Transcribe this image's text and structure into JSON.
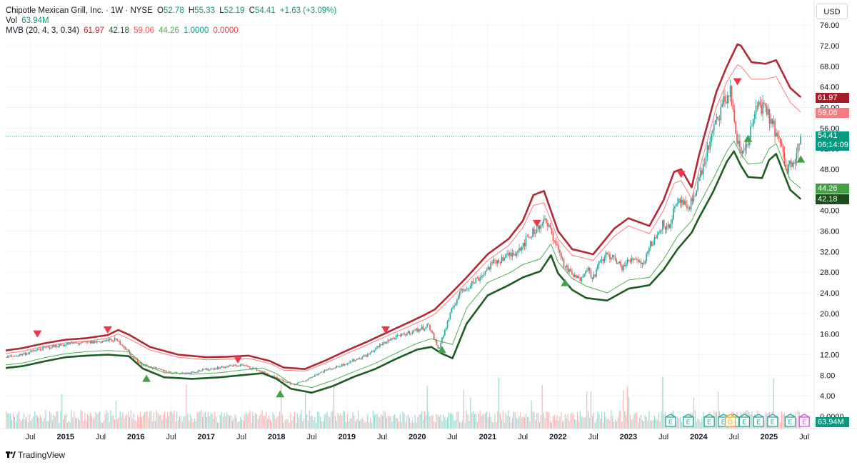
{
  "legend": {
    "title": "Chipotle Mexican Grill, Inc. · 1W · NYSE",
    "open_label": "O",
    "open": "52.78",
    "high_label": "H",
    "high": "55.33",
    "low_label": "L",
    "low": "52.19",
    "close_label": "C",
    "close": "54.41",
    "change": "+1.63 (+3.09%)",
    "vol_label": "Vol",
    "vol_value": "63.94M",
    "mvb_label": "MVB (20, 4, 3, 0.34)",
    "mvb_values": [
      "61.97",
      "42.18",
      "59.06",
      "44.26",
      "1.0000",
      "0.0000"
    ]
  },
  "currency": "USD",
  "price_tags": {
    "upper_outer": "61.97",
    "upper_inner": "59.06",
    "last_price": "54.41",
    "countdown": "06:14:09",
    "lower_inner": "44.26",
    "lower_outer": "42.18",
    "volume": "63.94M"
  },
  "watermark": "TradingView",
  "colors": {
    "up": "#26a69a",
    "down": "#ef5350",
    "upper_band": "#b22833",
    "upper_inner": "#f77c80",
    "lower_band": "#1b5e20",
    "lower_inner": "#4caf50",
    "earnings": "#26a69a",
    "dividend": "#f7a600",
    "split": "#e040fb"
  },
  "chart_data": {
    "type": "line",
    "title": "Chipotle Mexican Grill, Inc. · 1W · NYSE",
    "y_axis_labels": [
      "0.0000",
      "4.00",
      "8.00",
      "12.00",
      "16.00",
      "20.00",
      "24.00",
      "28.00",
      "32.00",
      "36.00",
      "40.00",
      "44.00",
      "48.00",
      "52.00",
      "56.00",
      "60.00",
      "64.00",
      "68.00",
      "72.00",
      "76.00"
    ],
    "x_axis_labels": [
      "Jul",
      "2015",
      "Jul",
      "2016",
      "Jul",
      "2017",
      "Jul",
      "2018",
      "Jul",
      "2019",
      "Jul",
      "2020",
      "Jul",
      "2021",
      "Jul",
      "2022",
      "Jul",
      "2023",
      "Jul",
      "2024",
      "Jul",
      "2025",
      "Jul"
    ],
    "x_tick_dates": [
      2014.5,
      2015,
      2015.5,
      2016,
      2016.5,
      2017,
      2017.5,
      2018,
      2018.5,
      2019,
      2019.5,
      2020,
      2020.5,
      2021,
      2021.5,
      2022,
      2022.5,
      2023,
      2023.5,
      2024,
      2024.5,
      2025,
      2025.5
    ],
    "ylim": [
      0,
      77
    ],
    "xlim": [
      2014.15,
      2025.62
    ],
    "last_price": 54.41,
    "series": [
      {
        "name": "upper_outer",
        "x": [
          2014.15,
          2014.4,
          2014.7,
          2015.0,
          2015.3,
          2015.6,
          2015.75,
          2015.9,
          2016.2,
          2016.6,
          2017.0,
          2017.3,
          2017.6,
          2017.9,
          2018.1,
          2018.4,
          2018.7,
          2019.0,
          2019.3,
          2019.6,
          2019.9,
          2020.1,
          2020.25,
          2020.45,
          2020.7,
          2021.0,
          2021.3,
          2021.5,
          2021.65,
          2021.8,
          2022.0,
          2022.2,
          2022.5,
          2022.8,
          2023.0,
          2023.3,
          2023.5,
          2023.65,
          2023.75,
          2023.9,
          2024.0,
          2024.25,
          2024.4,
          2024.55,
          2024.6,
          2024.75,
          2024.95,
          2025.1,
          2025.3,
          2025.45
        ],
        "y": [
          12.8,
          13.3,
          14.2,
          14.9,
          15.2,
          15.8,
          16.8,
          15.9,
          13.5,
          12.0,
          11.5,
          11.6,
          11.8,
          10.8,
          9.5,
          9.2,
          10.9,
          12.8,
          14.6,
          16.5,
          18.4,
          19.7,
          20.8,
          23.5,
          27.0,
          31.5,
          34.5,
          38.0,
          43.0,
          43.8,
          36.0,
          32.5,
          31.5,
          36.5,
          38.5,
          37.0,
          42.0,
          47.5,
          48.0,
          44.5,
          50.5,
          63.0,
          68.0,
          72.3,
          72.0,
          68.8,
          68.5,
          69.2,
          63.8,
          62.0
        ]
      },
      {
        "name": "upper_inner",
        "x": [
          2014.15,
          2014.4,
          2014.7,
          2015.0,
          2015.3,
          2015.6,
          2015.75,
          2015.9,
          2016.2,
          2016.6,
          2017.0,
          2017.3,
          2017.6,
          2017.9,
          2018.1,
          2018.4,
          2018.7,
          2019.0,
          2019.3,
          2019.6,
          2019.9,
          2020.1,
          2020.25,
          2020.45,
          2020.7,
          2021.0,
          2021.3,
          2021.5,
          2021.65,
          2021.8,
          2022.0,
          2022.2,
          2022.5,
          2022.8,
          2023.0,
          2023.3,
          2023.5,
          2023.65,
          2023.75,
          2023.9,
          2024.0,
          2024.25,
          2024.4,
          2024.55,
          2024.6,
          2024.75,
          2024.95,
          2025.1,
          2025.3,
          2025.45
        ],
        "y": [
          12.2,
          12.7,
          13.6,
          14.3,
          14.6,
          15.2,
          16.0,
          15.1,
          12.9,
          11.5,
          11.0,
          11.1,
          11.3,
          10.3,
          9.0,
          8.8,
          10.4,
          12.2,
          14.0,
          15.8,
          17.6,
          18.8,
          19.9,
          22.6,
          26.0,
          30.3,
          33.2,
          36.7,
          41.0,
          41.5,
          34.5,
          31.3,
          30.3,
          35.0,
          37.0,
          35.5,
          40.0,
          45.3,
          45.8,
          42.3,
          47.5,
          60.0,
          65.0,
          68.3,
          68.0,
          65.5,
          65.5,
          66.0,
          61.0,
          59.1
        ]
      },
      {
        "name": "lower_inner",
        "x": [
          2014.15,
          2014.4,
          2014.7,
          2015.0,
          2015.3,
          2015.6,
          2015.9,
          2016.1,
          2016.4,
          2016.8,
          2017.2,
          2017.5,
          2017.8,
          2018.0,
          2018.2,
          2018.5,
          2018.8,
          2019.1,
          2019.4,
          2019.7,
          2020.0,
          2020.2,
          2020.35,
          2020.5,
          2020.7,
          2021.0,
          2021.3,
          2021.5,
          2021.75,
          2021.9,
          2022.0,
          2022.2,
          2022.4,
          2022.7,
          2023.0,
          2023.3,
          2023.5,
          2023.7,
          2023.9,
          2024.0,
          2024.2,
          2024.4,
          2024.5,
          2024.6,
          2024.7,
          2024.9,
          2025.0,
          2025.1,
          2025.3,
          2025.45
        ],
        "y": [
          10.0,
          10.4,
          11.4,
          12.2,
          12.6,
          12.8,
          12.6,
          10.2,
          8.5,
          8.2,
          8.5,
          9.0,
          9.4,
          8.3,
          6.4,
          5.6,
          7.0,
          8.7,
          10.3,
          12.3,
          14.2,
          15.1,
          14.5,
          14.0,
          21.0,
          26.0,
          27.8,
          29.5,
          30.6,
          33.5,
          30.0,
          26.8,
          25.3,
          24.0,
          26.5,
          27.0,
          30.5,
          35.0,
          38.0,
          41.0,
          46.0,
          51.5,
          53.5,
          51.0,
          49.0,
          49.3,
          52.0,
          53.0,
          46.0,
          44.3
        ]
      },
      {
        "name": "lower_outer",
        "x": [
          2014.15,
          2014.4,
          2014.7,
          2015.0,
          2015.3,
          2015.6,
          2015.9,
          2016.1,
          2016.4,
          2016.8,
          2017.2,
          2017.5,
          2017.8,
          2018.0,
          2018.2,
          2018.5,
          2018.8,
          2019.1,
          2019.4,
          2019.7,
          2020.0,
          2020.2,
          2020.35,
          2020.5,
          2020.7,
          2021.0,
          2021.3,
          2021.5,
          2021.75,
          2021.9,
          2022.0,
          2022.2,
          2022.4,
          2022.7,
          2023.0,
          2023.3,
          2023.5,
          2023.7,
          2023.9,
          2024.0,
          2024.2,
          2024.4,
          2024.5,
          2024.6,
          2024.7,
          2024.9,
          2025.0,
          2025.1,
          2025.3,
          2025.45
        ],
        "y": [
          9.4,
          9.8,
          10.7,
          11.5,
          11.8,
          12.0,
          11.7,
          9.3,
          7.6,
          7.3,
          7.6,
          8.0,
          8.4,
          7.3,
          5.4,
          4.6,
          5.9,
          7.7,
          9.2,
          11.2,
          13.0,
          13.5,
          12.2,
          11.3,
          18.0,
          23.5,
          25.5,
          27.0,
          28.2,
          31.3,
          27.8,
          24.6,
          23.0,
          22.5,
          24.8,
          25.5,
          28.5,
          32.5,
          35.7,
          38.5,
          43.5,
          49.5,
          51.5,
          48.7,
          46.5,
          46.3,
          49.8,
          51.0,
          44.0,
          42.2
        ]
      },
      {
        "name": "close",
        "x": [
          2014.15,
          2014.3,
          2014.5,
          2014.7,
          2014.9,
          2015.1,
          2015.3,
          2015.5,
          2015.7,
          2015.8,
          2015.95,
          2016.1,
          2016.3,
          2016.5,
          2016.7,
          2016.9,
          2017.1,
          2017.3,
          2017.5,
          2017.7,
          2017.85,
          2018.0,
          2018.1,
          2018.25,
          2018.4,
          2018.55,
          2018.7,
          2018.85,
          2019.0,
          2019.15,
          2019.3,
          2019.45,
          2019.6,
          2019.75,
          2019.9,
          2020.05,
          2020.15,
          2020.2,
          2020.3,
          2020.4,
          2020.5,
          2020.6,
          2020.75,
          2020.9,
          2021.05,
          2021.2,
          2021.35,
          2021.5,
          2021.6,
          2021.7,
          2021.8,
          2021.9,
          2022.0,
          2022.1,
          2022.2,
          2022.3,
          2022.4,
          2022.5,
          2022.6,
          2022.7,
          2022.8,
          2022.9,
          2023.0,
          2023.1,
          2023.2,
          2023.3,
          2023.4,
          2023.5,
          2023.55,
          2023.65,
          2023.75,
          2023.85,
          2023.95,
          2024.05,
          2024.15,
          2024.25,
          2024.35,
          2024.45,
          2024.5,
          2024.55,
          2024.6,
          2024.65,
          2024.75,
          2024.85,
          2024.95,
          2025.05,
          2025.15,
          2025.25,
          2025.35,
          2025.45
        ],
        "y": [
          11.5,
          11.8,
          12.5,
          13.3,
          13.8,
          14.2,
          14.3,
          14.6,
          14.9,
          14.1,
          11.5,
          10.0,
          9.2,
          8.5,
          8.4,
          8.9,
          9.3,
          9.7,
          10.0,
          9.2,
          8.3,
          7.4,
          6.8,
          6.2,
          6.9,
          8.1,
          9.0,
          9.6,
          10.4,
          11.2,
          12.0,
          13.6,
          14.9,
          15.6,
          16.4,
          17.0,
          17.8,
          16.5,
          13.0,
          17.0,
          21.0,
          24.0,
          25.6,
          27.2,
          29.5,
          30.7,
          31.5,
          33.4,
          35.2,
          36.5,
          38.0,
          36.0,
          32.5,
          29.0,
          27.5,
          26.5,
          29.0,
          27.0,
          30.0,
          31.5,
          30.5,
          29.0,
          30.0,
          31.0,
          29.5,
          33.0,
          35.0,
          38.0,
          36.0,
          40.0,
          42.0,
          39.5,
          44.0,
          48.0,
          53.0,
          57.0,
          61.0,
          63.0,
          58.0,
          53.0,
          51.0,
          52.0,
          56.0,
          61.0,
          59.0,
          57.0,
          53.0,
          48.0,
          50.0,
          54.41
        ]
      }
    ],
    "markers_down": [
      [
        2014.6,
        16.0
      ],
      [
        2015.6,
        16.8
      ],
      [
        2017.45,
        11.0
      ],
      [
        2019.55,
        16.8
      ],
      [
        2021.7,
        37.5
      ],
      [
        2023.75,
        47.0
      ],
      [
        2024.55,
        65.0
      ]
    ],
    "markers_up": [
      [
        2016.15,
        7.4
      ],
      [
        2018.05,
        4.4
      ],
      [
        2020.35,
        13.0
      ],
      [
        2022.1,
        26.0
      ],
      [
        2024.7,
        54.0
      ],
      [
        2025.45,
        50.0
      ]
    ],
    "earnings_x": [
      2023.6,
      2023.85,
      2024.15,
      2024.35,
      2024.5,
      2024.65,
      2024.85,
      2025.05,
      2025.3
    ],
    "dividend_x": [
      2024.45
    ],
    "split_x": [
      2025.5
    ],
    "volume_note": "weekly volume histogram, green/red by candle direction"
  }
}
